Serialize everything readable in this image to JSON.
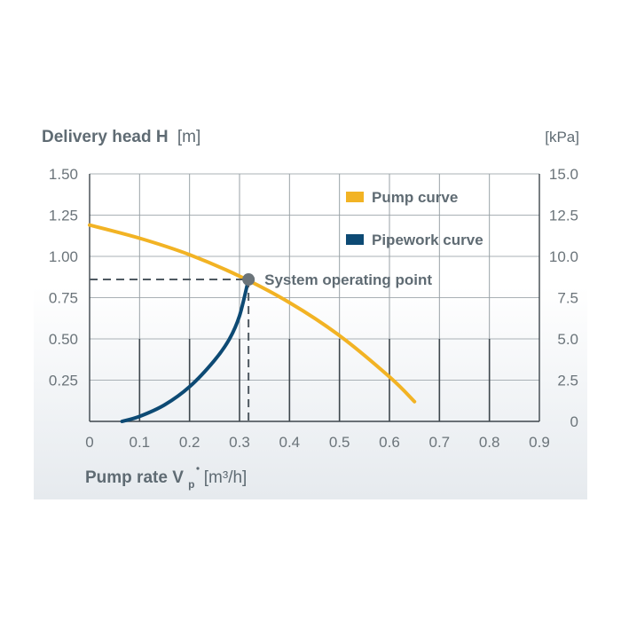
{
  "chart_data": {
    "type": "line",
    "title": "",
    "ylabel_bold": "Delivery head H",
    "ylabel_unit": "[m]",
    "y2label": "[kPa]",
    "xlabel_bold": "Pump rate V",
    "xlabel_sub": "p",
    "xlabel_unit": "[m³/h]",
    "xlim": [
      0,
      0.9
    ],
    "ylim": [
      0,
      1.5
    ],
    "y2lim": [
      0,
      15.0
    ],
    "xticks": [
      "0",
      "0.1",
      "0.2",
      "0.3",
      "0.4",
      "0.5",
      "0.6",
      "0.7",
      "0.8",
      "0.9"
    ],
    "yticks": [
      "",
      "0.25",
      "0.50",
      "0.75",
      "1.00",
      "1.25",
      "1.50"
    ],
    "y2ticks": [
      "0",
      "2.5",
      "5.0",
      "7.5",
      "10.0",
      "12.5",
      "15.0"
    ],
    "grid": true,
    "legend_position": "top-right",
    "series": [
      {
        "name": "Pump curve",
        "color": "#f2b324",
        "x": [
          0.0,
          0.1,
          0.2,
          0.3,
          0.4,
          0.5,
          0.6,
          0.65
        ],
        "y": [
          1.19,
          1.11,
          1.01,
          0.88,
          0.72,
          0.52,
          0.27,
          0.12
        ]
      },
      {
        "name": "Pipework curve",
        "color": "#0d4a74",
        "x": [
          0.065,
          0.1,
          0.15,
          0.2,
          0.25,
          0.28,
          0.3,
          0.318
        ],
        "y": [
          0.0,
          0.03,
          0.1,
          0.21,
          0.37,
          0.5,
          0.64,
          0.86
        ]
      }
    ],
    "annotations": [
      {
        "text": "System operating point",
        "x": 0.318,
        "y": 0.86
      }
    ]
  }
}
